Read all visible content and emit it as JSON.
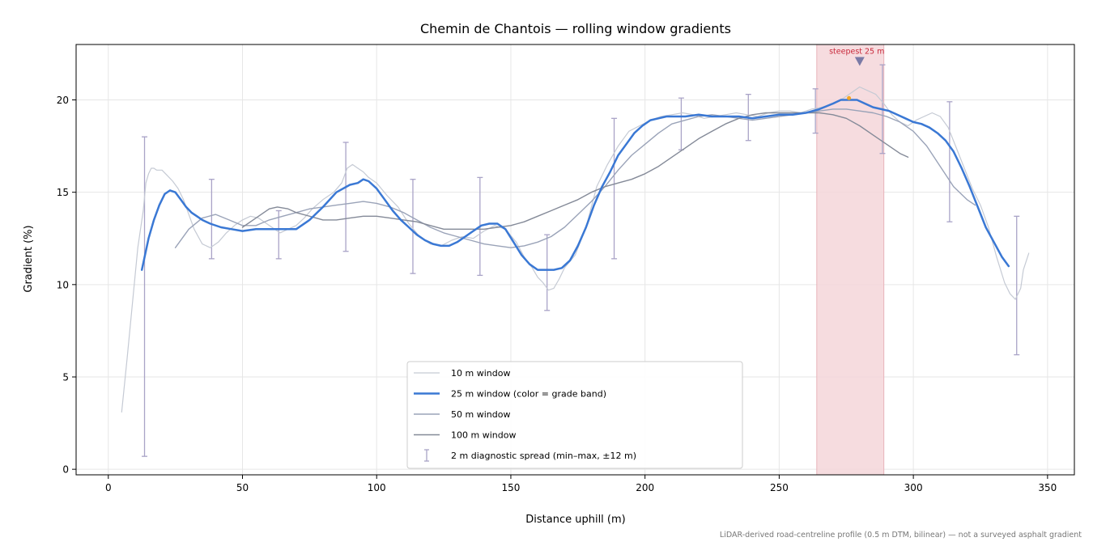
{
  "chart_data": {
    "type": "line",
    "title": "Chemin de Chantois — rolling window gradients",
    "xlabel": "Distance uphill (m)",
    "ylabel": "Gradient (%)",
    "xlim": [
      -12,
      360
    ],
    "ylim": [
      -0.3,
      23
    ],
    "xticks": [
      0,
      50,
      100,
      150,
      200,
      250,
      300,
      350
    ],
    "yticks": [
      0,
      5,
      10,
      15,
      20
    ],
    "grid": true,
    "legend_position": "lower center",
    "footnote": "LiDAR-derived road-centreline profile (0.5 m DTM, bilinear) — not a surveyed asphalt gradient",
    "highlight": {
      "label": "steepest 25 m",
      "x_start": 264,
      "x_end": 289,
      "color": "#f4d6d9",
      "marker_x": 280,
      "marker_y": 22.1,
      "peak_x": 276,
      "peak_y": 20.1,
      "peak_color": "#f5a623"
    },
    "series": [
      {
        "name": "10 m window",
        "color": "#c5cad4",
        "width": 1.2,
        "x": [
          5,
          7,
          9,
          11,
          13,
          14,
          15,
          16,
          17,
          18,
          20,
          22,
          24,
          26,
          28,
          30,
          32,
          35,
          38,
          41,
          44,
          47,
          50,
          53,
          56,
          60,
          64,
          67,
          70,
          73,
          76,
          80,
          84,
          87,
          89,
          91,
          93,
          95,
          97,
          100,
          104,
          108,
          112,
          116,
          120,
          124,
          128,
          132,
          136,
          140,
          144,
          148,
          152,
          155,
          158,
          160,
          162,
          164,
          166,
          168,
          170,
          174,
          178,
          182,
          186,
          190,
          194,
          198,
          202,
          206,
          210,
          214,
          218,
          222,
          226,
          230,
          234,
          238,
          242,
          246,
          250,
          254,
          258,
          262,
          266,
          270,
          274,
          277,
          280,
          283,
          286,
          289,
          292,
          295,
          298,
          301,
          304,
          307,
          310,
          313,
          316,
          319,
          322,
          325,
          328,
          331,
          334,
          336,
          338,
          340,
          341,
          343
        ],
        "y": [
          3.1,
          6,
          9,
          12,
          14,
          15.5,
          16,
          16.3,
          16.3,
          16.2,
          16.2,
          15.9,
          15.6,
          15.2,
          14.6,
          13.8,
          13,
          12.2,
          12,
          12.3,
          12.8,
          13.2,
          13.5,
          13.7,
          13.6,
          13.2,
          12.8,
          13,
          13.2,
          13.6,
          14.1,
          14.6,
          15,
          15.5,
          16.3,
          16.5,
          16.3,
          16.1,
          15.8,
          15.5,
          14.8,
          14.2,
          13.3,
          12.6,
          12.2,
          12.1,
          12.4,
          12.6,
          12.5,
          12.9,
          13.2,
          13,
          12.3,
          11.5,
          10.9,
          10.4,
          10.1,
          9.7,
          9.8,
          10.3,
          10.9,
          11.6,
          13.1,
          15.3,
          16.5,
          17.5,
          18.3,
          18.6,
          18.9,
          19.1,
          19.2,
          19.3,
          19.2,
          19,
          19.1,
          19.2,
          19.3,
          19.2,
          19.1,
          19.3,
          19.4,
          19.4,
          19.3,
          19.5,
          19.6,
          19.8,
          20.1,
          20.4,
          20.7,
          20.5,
          20.3,
          19.8,
          19.2,
          18.8,
          18.6,
          18.9,
          19.1,
          19.3,
          19.1,
          18.5,
          17.4,
          16.3,
          15.2,
          14.3,
          13.1,
          11.5,
          10.1,
          9.5,
          9.2,
          9.8,
          10.8,
          11.7
        ]
      },
      {
        "name": "25 m window (color = grade band)",
        "color": "#3a78d4",
        "width": 2.5,
        "x": [
          12.5,
          15,
          17,
          19,
          21,
          23,
          25,
          27,
          29,
          31,
          33,
          35,
          38,
          42,
          46,
          50,
          55,
          60,
          65,
          70,
          75,
          80,
          85,
          90,
          93,
          95,
          97,
          100,
          103,
          106,
          109,
          112,
          115,
          118,
          121,
          124,
          127,
          130,
          133,
          136,
          139,
          142,
          145,
          148,
          151,
          154,
          157,
          160,
          163,
          166,
          169,
          172,
          175,
          178,
          181,
          184,
          187,
          190,
          193,
          196,
          199,
          202,
          205,
          208,
          211,
          215,
          220,
          225,
          230,
          235,
          240,
          245,
          250,
          255,
          260,
          265,
          270,
          273,
          276,
          279,
          282,
          285,
          288,
          291,
          294,
          297,
          300,
          303,
          306,
          309,
          312,
          315,
          318,
          321,
          324,
          327,
          330,
          333,
          335.5
        ],
        "y": [
          10.8,
          12.5,
          13.5,
          14.3,
          14.9,
          15.1,
          15,
          14.6,
          14.2,
          13.9,
          13.7,
          13.5,
          13.3,
          13.1,
          13,
          12.9,
          13,
          13,
          13,
          13,
          13.5,
          14.2,
          15,
          15.4,
          15.5,
          15.7,
          15.6,
          15.2,
          14.6,
          14,
          13.5,
          13.1,
          12.7,
          12.4,
          12.2,
          12.1,
          12.1,
          12.3,
          12.6,
          12.9,
          13.2,
          13.3,
          13.3,
          13,
          12.3,
          11.6,
          11.1,
          10.8,
          10.8,
          10.8,
          10.9,
          11.3,
          12.1,
          13.1,
          14.3,
          15.3,
          16.1,
          17,
          17.6,
          18.2,
          18.6,
          18.9,
          19,
          19.1,
          19.1,
          19.1,
          19.2,
          19.1,
          19.1,
          19.1,
          19,
          19.1,
          19.2,
          19.2,
          19.3,
          19.5,
          19.8,
          20,
          20,
          20,
          19.8,
          19.6,
          19.5,
          19.4,
          19.2,
          19,
          18.8,
          18.7,
          18.5,
          18.2,
          17.8,
          17.2,
          16.3,
          15.3,
          14.2,
          13.1,
          12.3,
          11.5,
          11.0
        ]
      },
      {
        "name": "50 m window",
        "color": "#9aa3b8",
        "width": 1.4,
        "x": [
          25,
          30,
          35,
          40,
          45,
          50,
          55,
          60,
          65,
          70,
          75,
          80,
          85,
          90,
          95,
          100,
          105,
          110,
          115,
          120,
          125,
          130,
          135,
          140,
          145,
          150,
          155,
          160,
          165,
          170,
          175,
          180,
          185,
          190,
          195,
          200,
          205,
          210,
          215,
          220,
          225,
          230,
          235,
          240,
          245,
          250,
          255,
          260,
          265,
          270,
          275,
          280,
          285,
          290,
          295,
          300,
          305,
          310,
          315,
          320,
          323
        ],
        "y": [
          12,
          13,
          13.6,
          13.8,
          13.5,
          13.2,
          13.2,
          13.5,
          13.7,
          13.9,
          14.1,
          14.2,
          14.3,
          14.4,
          14.5,
          14.4,
          14.2,
          13.9,
          13.5,
          13.1,
          12.8,
          12.6,
          12.4,
          12.2,
          12.1,
          12,
          12.1,
          12.3,
          12.6,
          13.1,
          13.8,
          14.5,
          15.3,
          16.2,
          17,
          17.6,
          18.2,
          18.7,
          18.9,
          19.1,
          19.2,
          19.1,
          19,
          18.9,
          19,
          19.1,
          19.2,
          19.3,
          19.4,
          19.5,
          19.5,
          19.4,
          19.3,
          19.1,
          18.8,
          18.3,
          17.5,
          16.4,
          15.3,
          14.6,
          14.3
        ]
      },
      {
        "name": "100 m window",
        "color": "#848a98",
        "width": 1.4,
        "x": [
          50,
          55,
          60,
          63,
          67,
          70,
          75,
          80,
          85,
          90,
          95,
          100,
          105,
          110,
          115,
          120,
          125,
          130,
          135,
          140,
          145,
          150,
          155,
          160,
          165,
          170,
          175,
          180,
          185,
          190,
          195,
          200,
          205,
          210,
          215,
          220,
          225,
          230,
          235,
          240,
          245,
          250,
          255,
          260,
          265,
          270,
          275,
          280,
          285,
          290,
          295,
          298
        ],
        "y": [
          13.1,
          13.6,
          14.1,
          14.2,
          14.1,
          13.9,
          13.7,
          13.5,
          13.5,
          13.6,
          13.7,
          13.7,
          13.6,
          13.5,
          13.4,
          13.2,
          13,
          13,
          13,
          13,
          13.1,
          13.2,
          13.4,
          13.7,
          14,
          14.3,
          14.6,
          15,
          15.3,
          15.5,
          15.7,
          16,
          16.4,
          16.9,
          17.4,
          17.9,
          18.3,
          18.7,
          19,
          19.2,
          19.3,
          19.3,
          19.3,
          19.3,
          19.3,
          19.2,
          19,
          18.6,
          18.1,
          17.6,
          17.1,
          16.9
        ]
      }
    ],
    "error_bars": {
      "name": "2 m diagnostic spread (min–max, ±12 m)",
      "color": "#a9a3c7",
      "points": [
        {
          "x": 13.5,
          "low": 0.7,
          "high": 18
        },
        {
          "x": 38.5,
          "low": 11.4,
          "high": 15.7
        },
        {
          "x": 63.5,
          "low": 11.4,
          "high": 14
        },
        {
          "x": 88.5,
          "low": 11.8,
          "high": 17.7
        },
        {
          "x": 113.5,
          "low": 10.6,
          "high": 15.7
        },
        {
          "x": 138.5,
          "low": 10.5,
          "high": 15.8
        },
        {
          "x": 163.5,
          "low": 8.6,
          "high": 12.7
        },
        {
          "x": 188.5,
          "low": 11.4,
          "high": 19
        },
        {
          "x": 213.5,
          "low": 17.3,
          "high": 20.1
        },
        {
          "x": 238.5,
          "low": 17.8,
          "high": 20.3
        },
        {
          "x": 263.5,
          "low": 18.2,
          "high": 20.6
        },
        {
          "x": 288.5,
          "low": 17.1,
          "high": 21.9
        },
        {
          "x": 313.5,
          "low": 13.4,
          "high": 19.9
        },
        {
          "x": 338.5,
          "low": 6.2,
          "high": 13.7
        }
      ]
    }
  }
}
